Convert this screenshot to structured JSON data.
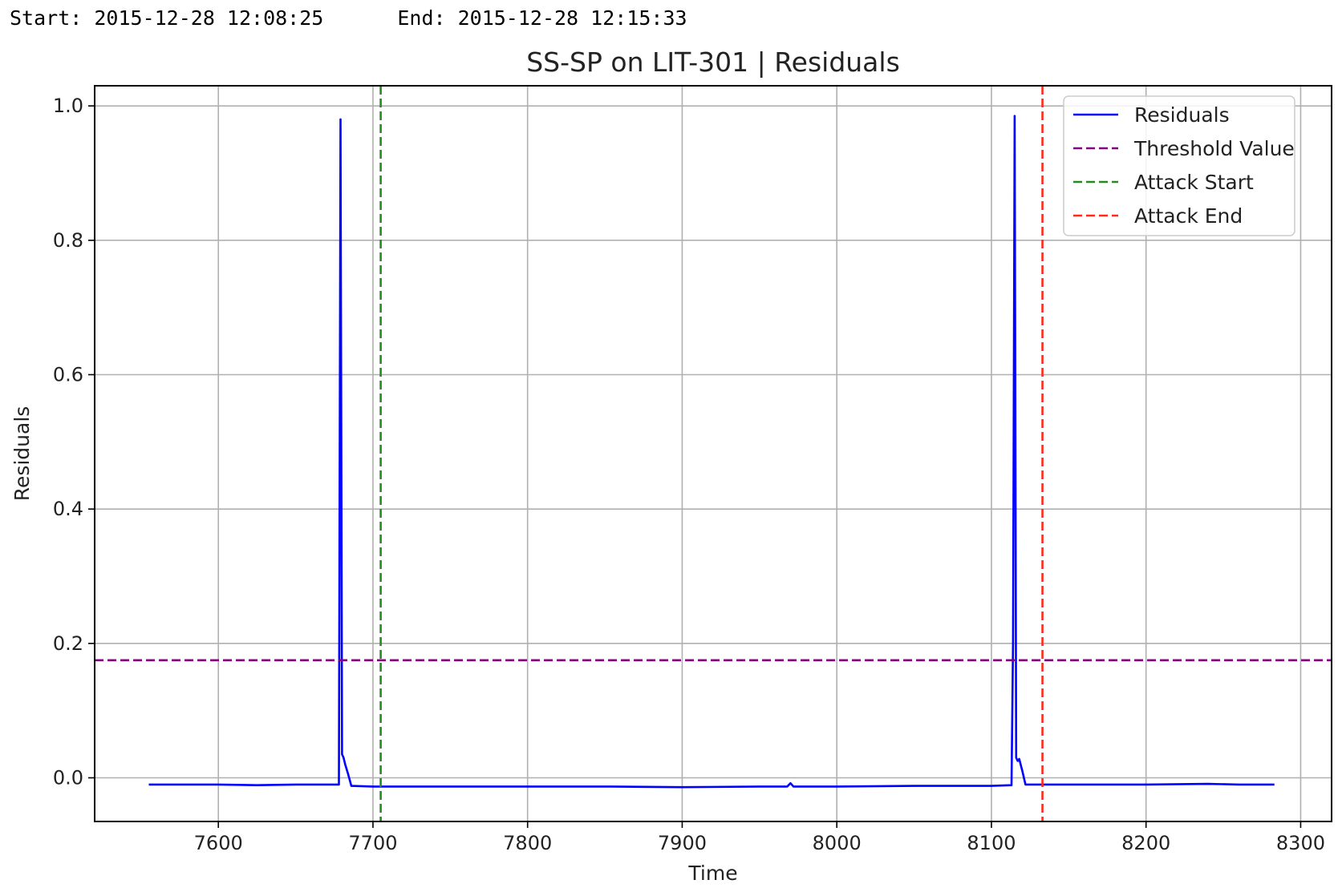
{
  "header": {
    "start": "Start: 2015-12-28 12:08:25",
    "end": "End: 2015-12-28 12:15:33"
  },
  "colors": {
    "residuals": "#0000ff",
    "threshold": "#800080",
    "attack_start": "#228b22",
    "attack_end": "#ff2a1a",
    "grid": "#b0b0b0"
  },
  "chart_data": {
    "type": "line",
    "title": "SS-SP  on  LIT-301  |  Residuals",
    "xlabel": "Time",
    "ylabel": "Residuals",
    "xlim": [
      7520,
      8320
    ],
    "ylim": [
      -0.065,
      1.03
    ],
    "xticks": [
      7600,
      7700,
      7800,
      7900,
      8000,
      8100,
      8200,
      8300
    ],
    "xtick_labels": [
      "7600",
      "7700",
      "7800",
      "7900",
      "8000",
      "8100",
      "8200",
      "8300"
    ],
    "yticks": [
      0.0,
      0.2,
      0.4,
      0.6,
      0.8,
      1.0
    ],
    "ytick_labels": [
      "0.0",
      "0.2",
      "0.4",
      "0.6",
      "0.8",
      "1.0"
    ],
    "grid": true,
    "legend_position": "top-right",
    "series": [
      {
        "name": "Residuals",
        "style": "solid",
        "x": [
          7555,
          7580,
          7600,
          7625,
          7650,
          7670,
          7678,
          7679,
          7680,
          7681,
          7682,
          7684,
          7686,
          7700,
          7750,
          7800,
          7850,
          7900,
          7950,
          7968,
          7970,
          7972,
          8000,
          8050,
          8100,
          8113,
          8114,
          8115,
          8116,
          8117,
          8118,
          8120,
          8122,
          8140,
          8200,
          8240,
          8260,
          8283
        ],
        "y": [
          -0.01,
          -0.01,
          -0.01,
          -0.011,
          -0.01,
          -0.01,
          -0.01,
          0.98,
          0.035,
          0.03,
          0.02,
          0.005,
          -0.012,
          -0.013,
          -0.013,
          -0.013,
          -0.013,
          -0.014,
          -0.013,
          -0.013,
          -0.008,
          -0.013,
          -0.013,
          -0.012,
          -0.012,
          -0.011,
          0.2,
          0.985,
          0.03,
          0.025,
          0.028,
          0.01,
          -0.01,
          -0.01,
          -0.01,
          -0.009,
          -0.01,
          -0.01
        ]
      },
      {
        "name": "Threshold Value",
        "style": "dashed",
        "orientation": "horizontal",
        "value": 0.175
      },
      {
        "name": "Attack Start",
        "style": "dashed",
        "orientation": "vertical",
        "value": 7705
      },
      {
        "name": "Attack End",
        "style": "dashed",
        "orientation": "vertical",
        "value": 8133
      }
    ]
  }
}
